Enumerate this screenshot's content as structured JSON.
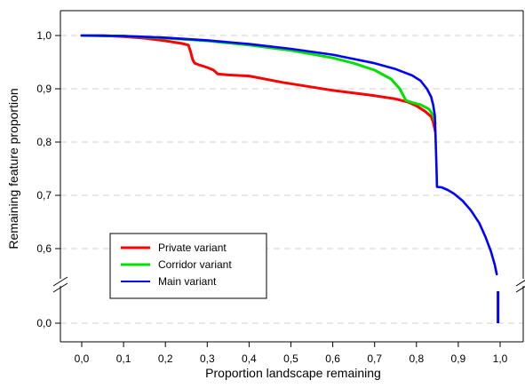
{
  "chart_data": {
    "type": "line",
    "title": "",
    "xlabel": "Proportion landscape remaining",
    "ylabel": "Remaining feature proportion",
    "xlim": [
      -0.05,
      1.05
    ],
    "xticks": [
      "0,0",
      "0,1",
      "0,2",
      "0,3",
      "0,4",
      "0,5",
      "0,6",
      "0,7",
      "0,8",
      "0,9",
      "1,0"
    ],
    "yticks": [
      "1,0",
      "0,9",
      "0,8",
      "0,7",
      "0,6",
      "0,0"
    ],
    "y_axis_break": "between 0,6 and 0,0",
    "grid": "horizontal dashed",
    "legend_position": "bottom-left",
    "series": [
      {
        "name": "Private variant",
        "color": "#ff0000",
        "points": [
          [
            0.0,
            1.0
          ],
          [
            0.05,
            1.0
          ],
          [
            0.1,
            0.998
          ],
          [
            0.15,
            0.995
          ],
          [
            0.2,
            0.99
          ],
          [
            0.24,
            0.985
          ],
          [
            0.255,
            0.982
          ],
          [
            0.26,
            0.97
          ],
          [
            0.265,
            0.955
          ],
          [
            0.27,
            0.948
          ],
          [
            0.28,
            0.945
          ],
          [
            0.3,
            0.94
          ],
          [
            0.315,
            0.935
          ],
          [
            0.325,
            0.928
          ],
          [
            0.35,
            0.926
          ],
          [
            0.4,
            0.924
          ],
          [
            0.44,
            0.918
          ],
          [
            0.48,
            0.912
          ],
          [
            0.52,
            0.907
          ],
          [
            0.56,
            0.902
          ],
          [
            0.6,
            0.897
          ],
          [
            0.65,
            0.892
          ],
          [
            0.7,
            0.887
          ],
          [
            0.75,
            0.881
          ],
          [
            0.78,
            0.875
          ],
          [
            0.8,
            0.868
          ],
          [
            0.82,
            0.858
          ],
          [
            0.835,
            0.848
          ],
          [
            0.84,
            0.838
          ],
          [
            0.845,
            0.82
          ]
        ]
      },
      {
        "name": "Corridor variant",
        "color": "#00e000",
        "points": [
          [
            0.0,
            1.0
          ],
          [
            0.1,
            0.999
          ],
          [
            0.2,
            0.995
          ],
          [
            0.3,
            0.99
          ],
          [
            0.4,
            0.982
          ],
          [
            0.5,
            0.972
          ],
          [
            0.6,
            0.958
          ],
          [
            0.65,
            0.948
          ],
          [
            0.7,
            0.935
          ],
          [
            0.74,
            0.918
          ],
          [
            0.76,
            0.9
          ],
          [
            0.775,
            0.878
          ],
          [
            0.79,
            0.874
          ],
          [
            0.81,
            0.87
          ],
          [
            0.83,
            0.862
          ],
          [
            0.84,
            0.85
          ],
          [
            0.845,
            0.835
          ]
        ]
      },
      {
        "name": "Main variant",
        "color": "#0000ff",
        "points": [
          [
            0.0,
            1.0
          ],
          [
            0.1,
            0.999
          ],
          [
            0.2,
            0.996
          ],
          [
            0.3,
            0.991
          ],
          [
            0.4,
            0.984
          ],
          [
            0.5,
            0.975
          ],
          [
            0.6,
            0.964
          ],
          [
            0.7,
            0.948
          ],
          [
            0.75,
            0.937
          ],
          [
            0.79,
            0.925
          ],
          [
            0.81,
            0.915
          ],
          [
            0.825,
            0.9
          ],
          [
            0.835,
            0.885
          ],
          [
            0.84,
            0.87
          ],
          [
            0.844,
            0.85
          ],
          [
            0.846,
            0.8
          ],
          [
            0.848,
            0.75
          ],
          [
            0.849,
            0.716
          ],
          [
            0.86,
            0.715
          ],
          [
            0.875,
            0.71
          ],
          [
            0.89,
            0.703
          ],
          [
            0.91,
            0.69
          ],
          [
            0.93,
            0.672
          ],
          [
            0.95,
            0.648
          ],
          [
            0.965,
            0.622
          ],
          [
            0.978,
            0.595
          ],
          [
            0.987,
            0.57
          ],
          [
            0.992,
            0.552
          ]
        ]
      }
    ],
    "main_variant_tail": {
      "x": 0.995,
      "y_from": 0.0,
      "y_to": "above axis break"
    }
  }
}
